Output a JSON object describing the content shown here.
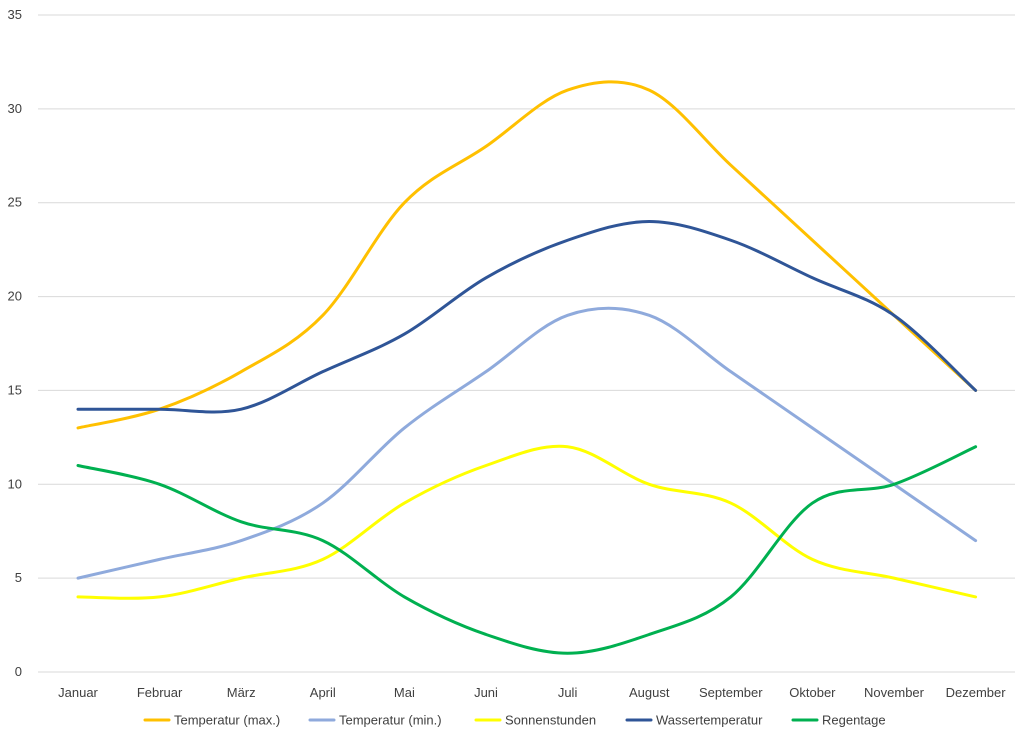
{
  "chart_data": {
    "type": "line",
    "smoothed": true,
    "categories": [
      "Januar",
      "Februar",
      "März",
      "April",
      "Mai",
      "Juni",
      "Juli",
      "August",
      "September",
      "Oktober",
      "November",
      "Dezember"
    ],
    "ylim": [
      0,
      35
    ],
    "yticks": [
      0,
      5,
      10,
      15,
      20,
      25,
      30,
      35
    ],
    "grid": true,
    "legend_position": "bottom",
    "series": [
      {
        "name": "Temperatur (max.)",
        "color": "#FFC000",
        "values": [
          13,
          14,
          16,
          19,
          25,
          28,
          31,
          31,
          27,
          23,
          19,
          15
        ]
      },
      {
        "name": "Temperatur (min.)",
        "color": "#8FAADC",
        "values": [
          5,
          6,
          7,
          9,
          13,
          16,
          19,
          19,
          16,
          13,
          10,
          7
        ]
      },
      {
        "name": "Sonnenstunden",
        "color": "#FFFF00",
        "values": [
          4,
          4,
          5,
          6,
          9,
          11,
          12,
          10,
          9,
          6,
          5,
          4
        ]
      },
      {
        "name": "Wassertemperatur",
        "color": "#2F5597",
        "values": [
          14,
          14,
          14,
          16,
          18,
          21,
          23,
          24,
          23,
          21,
          19,
          15
        ]
      },
      {
        "name": "Regentage",
        "color": "#00B050",
        "values": [
          11,
          10,
          8,
          7,
          4,
          2,
          1,
          2,
          4,
          9,
          10,
          12
        ]
      }
    ]
  }
}
